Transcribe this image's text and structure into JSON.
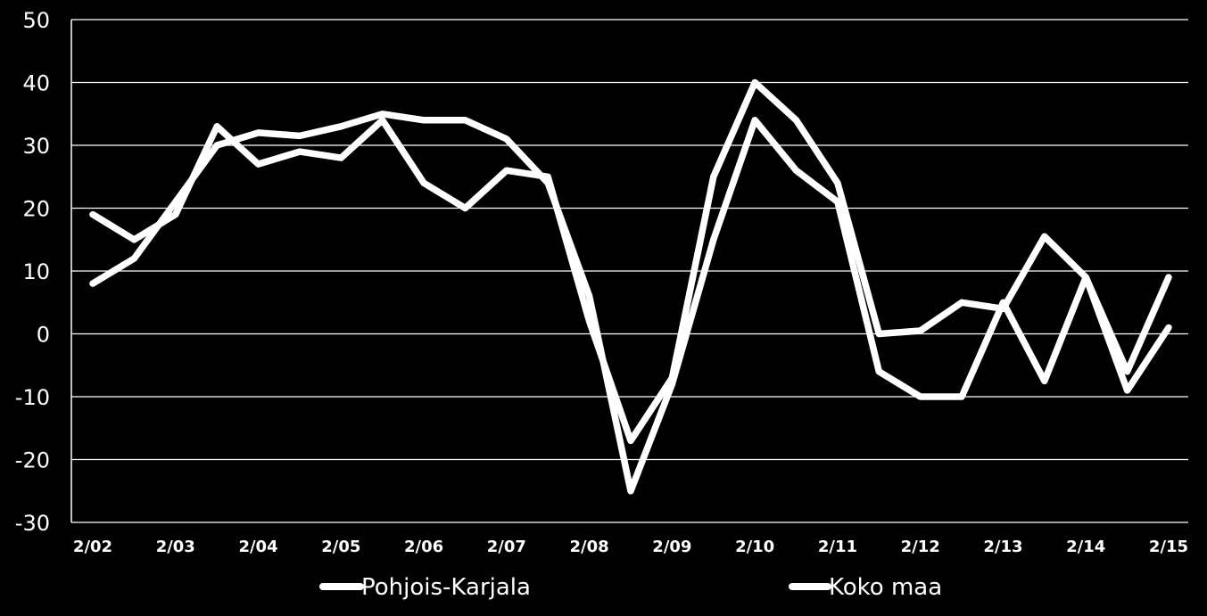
{
  "chart_data": {
    "type": "line",
    "title": "",
    "xlabel": "",
    "ylabel": "",
    "ylim": [
      -30,
      50
    ],
    "y_ticks": [
      "50",
      "40",
      "30",
      "20",
      "10",
      "0",
      "-10",
      "-20",
      "-30"
    ],
    "x_tick_labels": [
      "2/02",
      "2/03",
      "2/04",
      "2/05",
      "2/06",
      "2/07",
      "2/08",
      "2/09",
      "2/10",
      "2/11",
      "2/12",
      "2/13",
      "2/14",
      "2/15"
    ],
    "x_range": [
      0,
      26
    ],
    "grid": "horizontal",
    "legend_position": "bottom",
    "colors": {
      "background": "#000000",
      "grid": "#ffffff",
      "line": "#ffffff"
    },
    "series": [
      {
        "name": "Pohjois-Karjala",
        "values": [
          8,
          12,
          21,
          30,
          32,
          31.5,
          33,
          35,
          34,
          34,
          31,
          24,
          6,
          -25,
          -8,
          15,
          34,
          26,
          21,
          -6,
          -10,
          -10,
          5,
          -7.5,
          9,
          -9,
          1
        ]
      },
      {
        "name": "Koko maa",
        "values": [
          19,
          15,
          19,
          33,
          27,
          29,
          28,
          34,
          24,
          20,
          26,
          25,
          2,
          -17,
          -7,
          25,
          40,
          34,
          24,
          0,
          0.5,
          5,
          4,
          15.5,
          9,
          -6,
          9
        ]
      }
    ]
  }
}
